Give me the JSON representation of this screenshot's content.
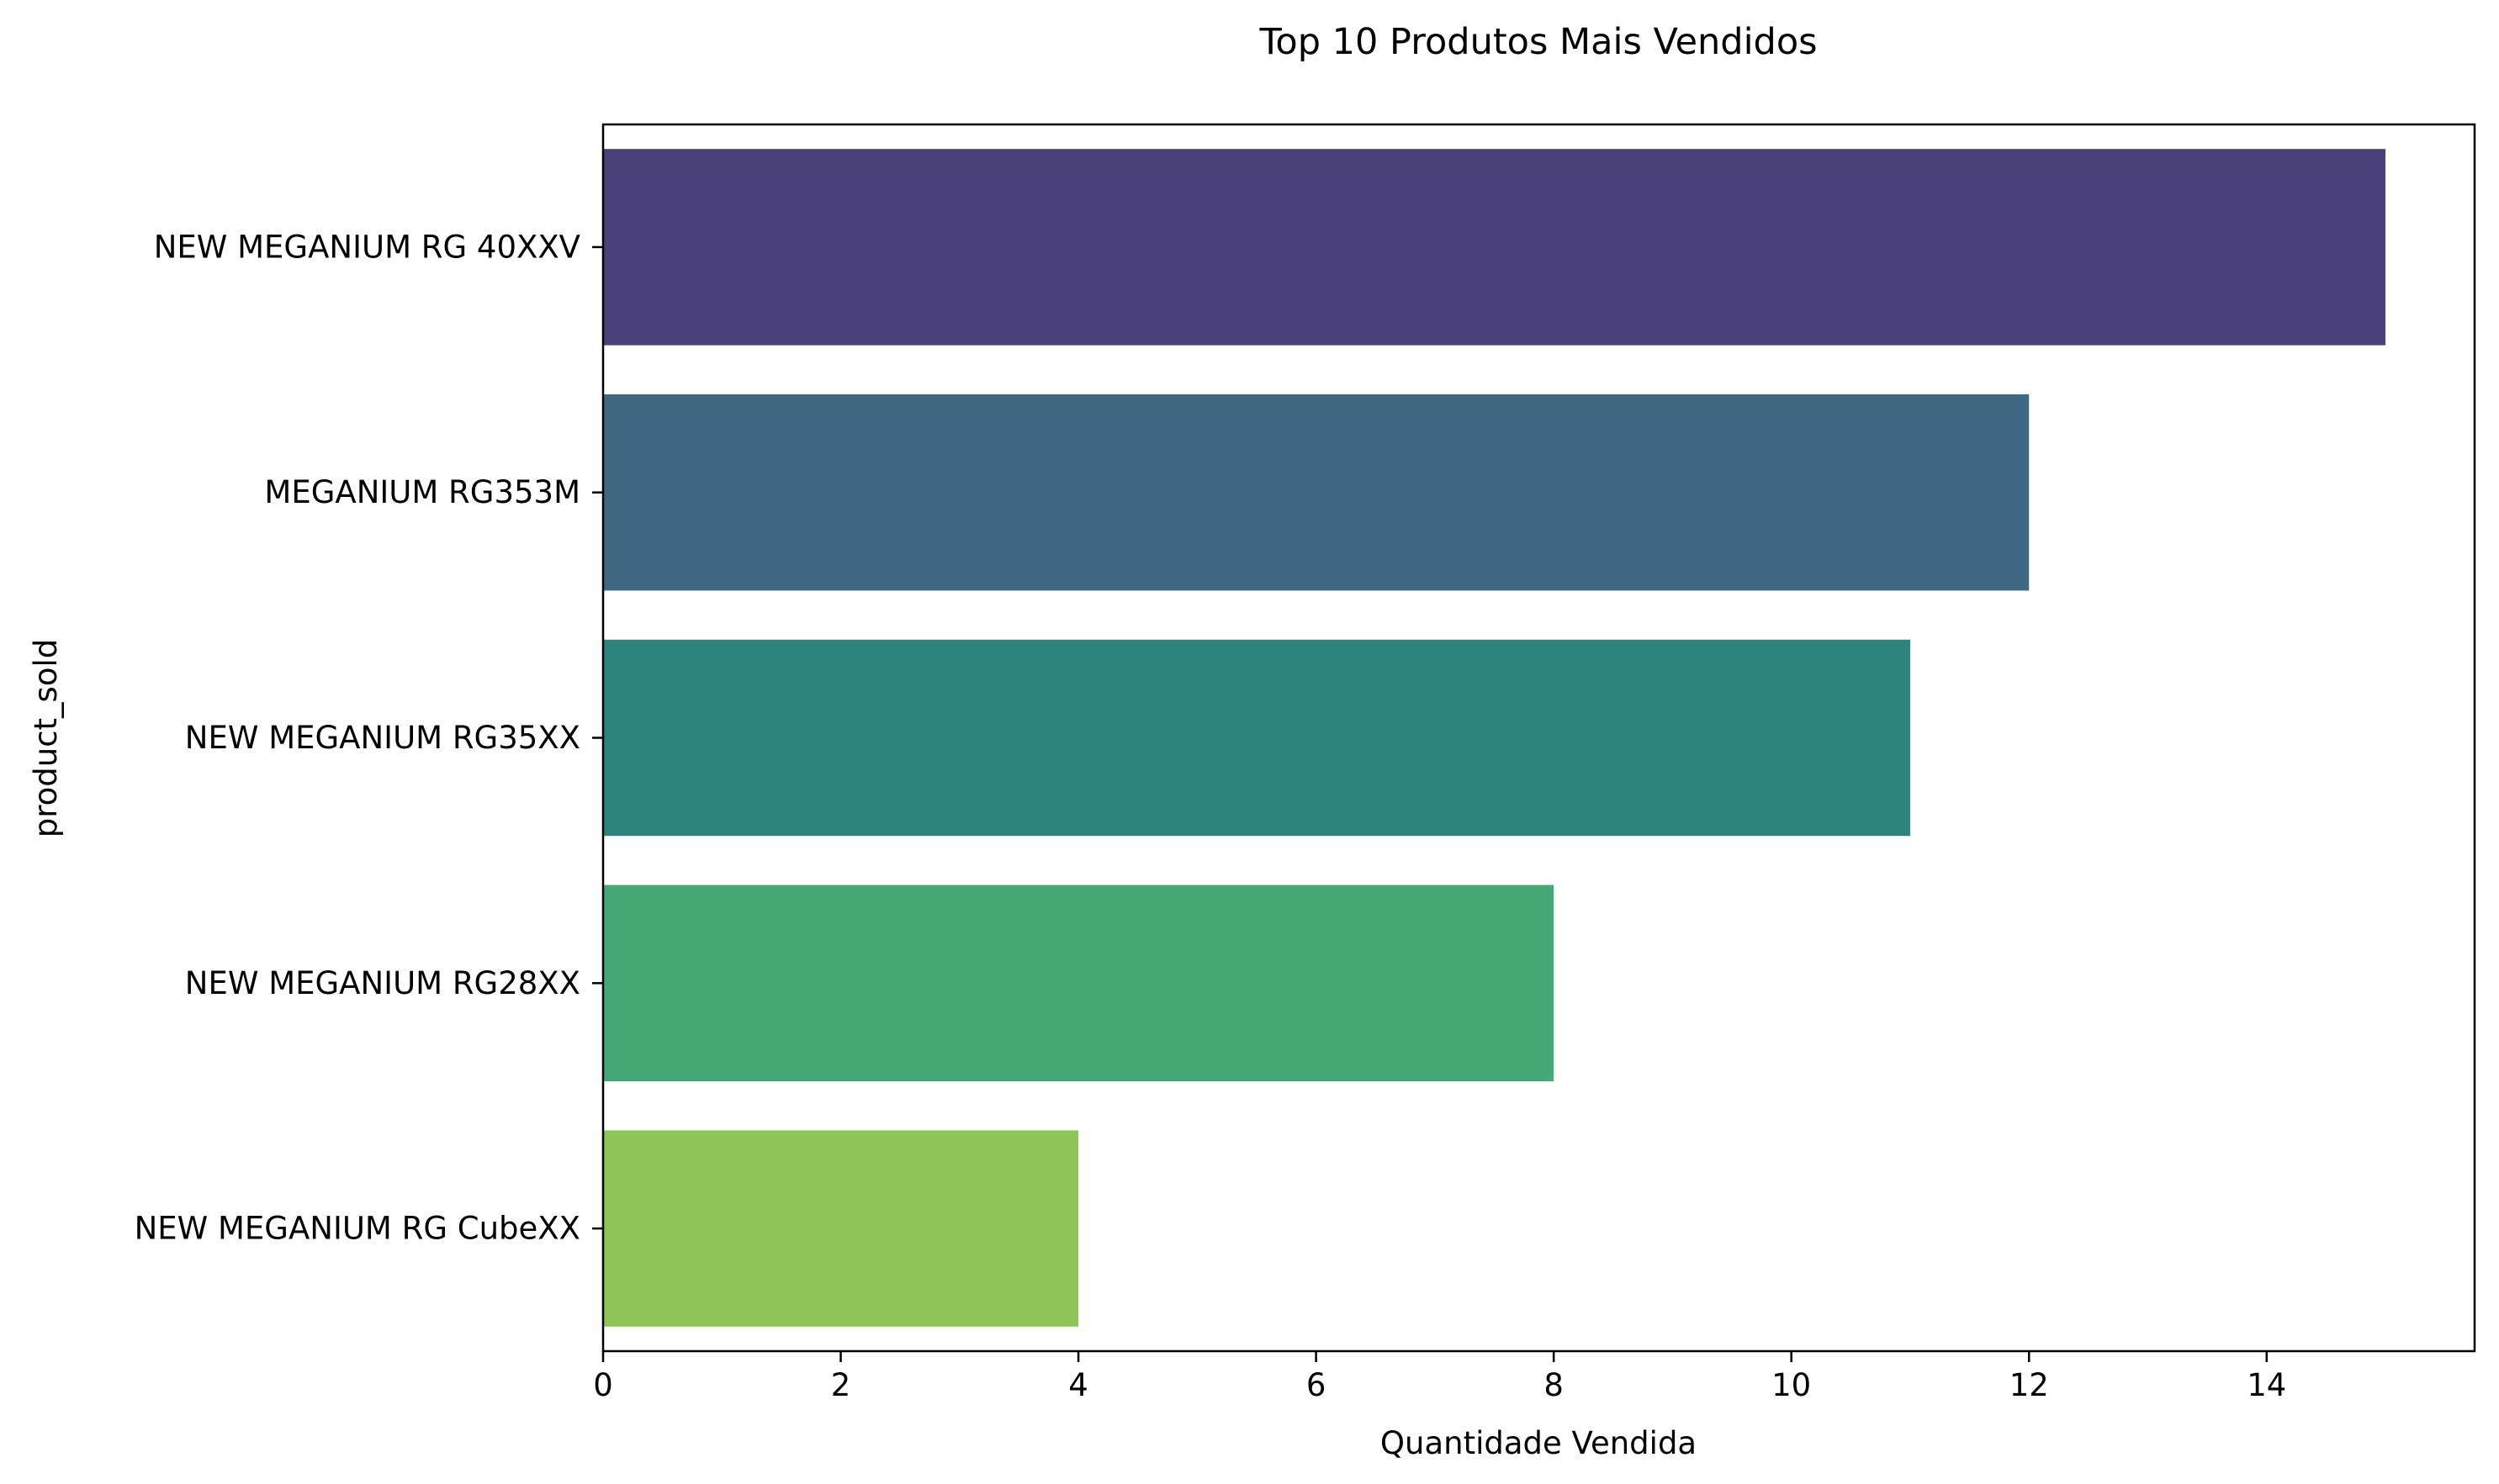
{
  "chart_data": {
    "type": "bar",
    "orientation": "horizontal",
    "title": "Top 10 Produtos Mais Vendidos",
    "xlabel": "Quantidade Vendida",
    "ylabel": "product_sold",
    "categories": [
      "NEW MEGANIUM RG 40XXV",
      "MEGANIUM RG353M",
      "NEW MEGANIUM RG35XX",
      "NEW MEGANIUM RG28XX",
      "NEW MEGANIUM RG CubeXX"
    ],
    "values": [
      15,
      12,
      11,
      8,
      4
    ],
    "colors": [
      "#4a4178",
      "#3f6882",
      "#2e837e",
      "#47a877",
      "#8fc556"
    ],
    "xlim": [
      0,
      15.75
    ],
    "xticks": [
      0,
      2,
      4,
      6,
      8,
      10,
      12,
      14
    ],
    "grid": false,
    "legend": "none"
  }
}
